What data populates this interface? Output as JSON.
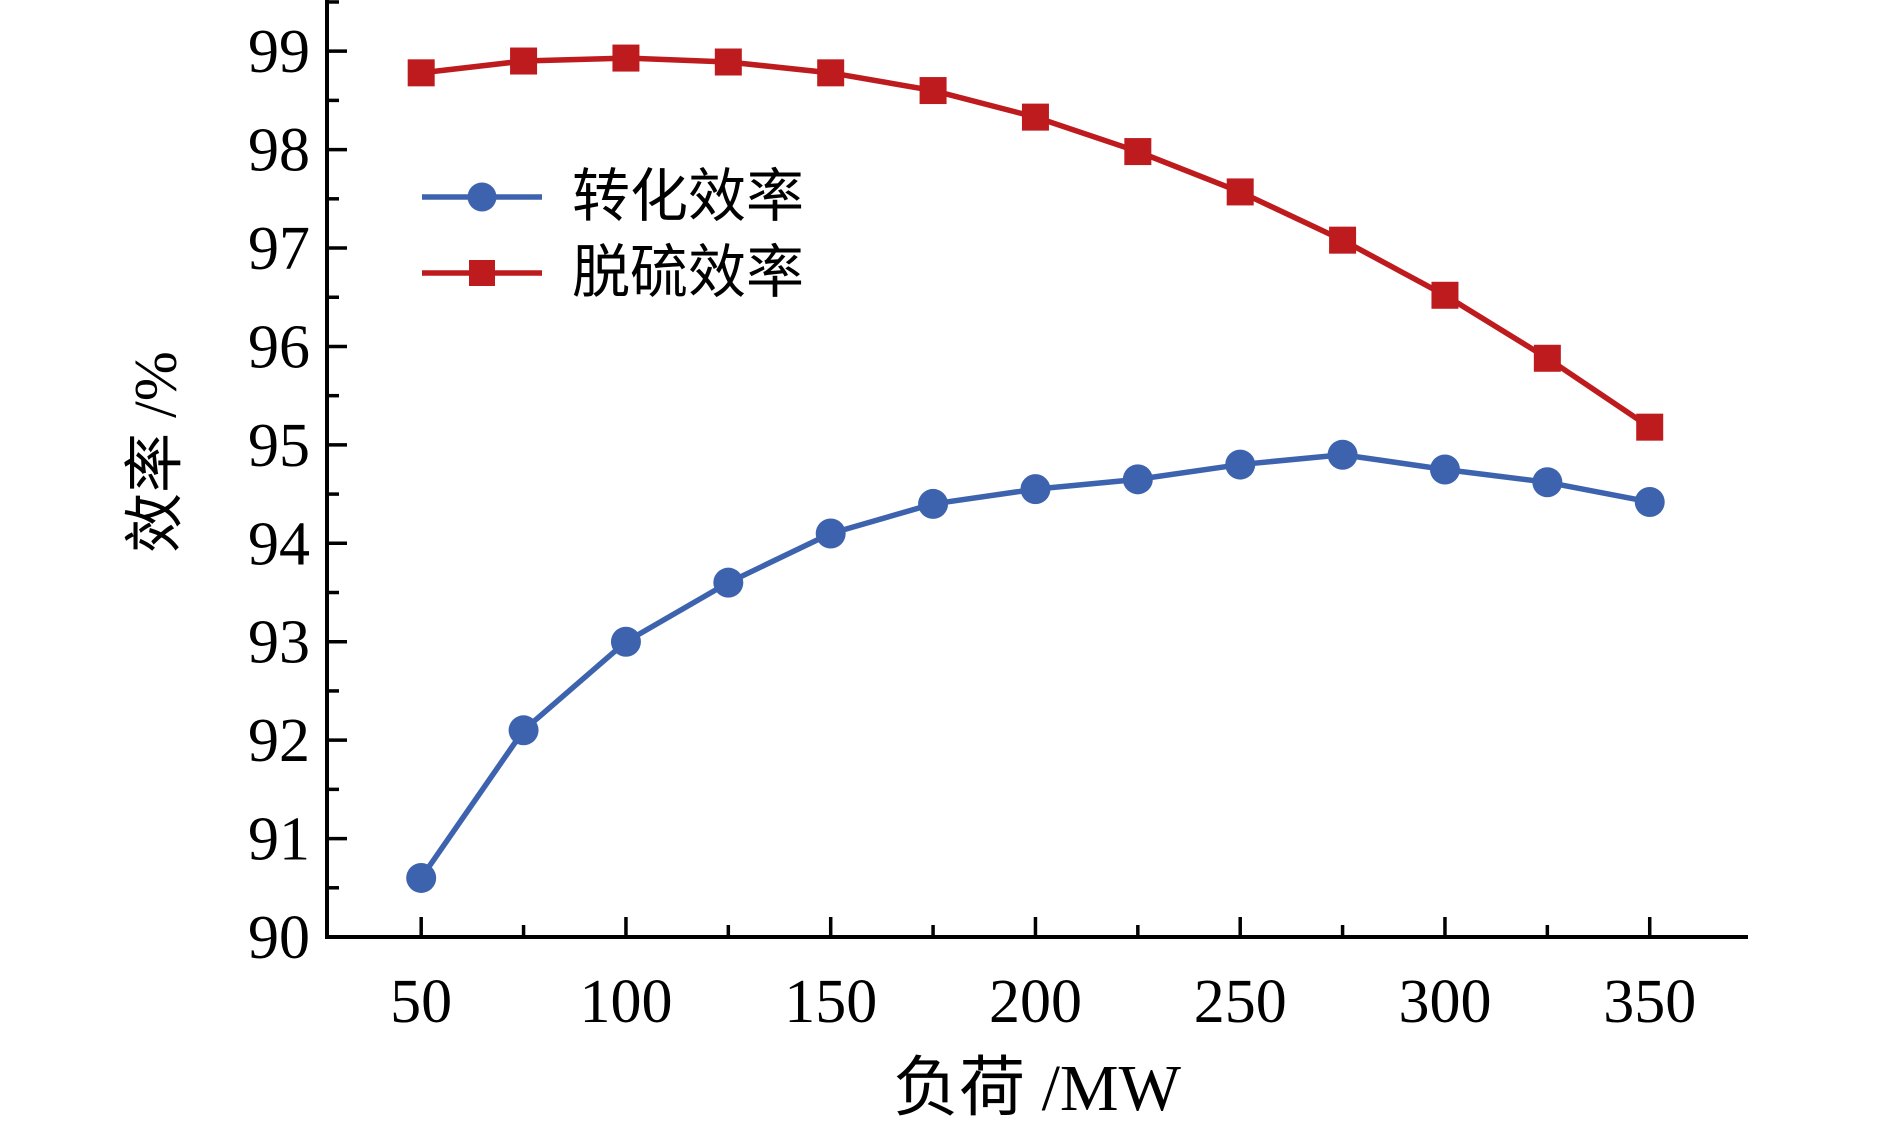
{
  "chart_data": {
    "type": "line",
    "title": "",
    "xlabel": "负荷 /MW",
    "ylabel": "效率 /%",
    "x": [
      50,
      75,
      100,
      125,
      150,
      175,
      200,
      225,
      250,
      275,
      300,
      325,
      350
    ],
    "series": [
      {
        "name": "转化效率",
        "color": "#3E63AE",
        "marker": "circle",
        "values": [
          90.6,
          92.1,
          93.0,
          93.6,
          94.1,
          94.4,
          94.55,
          94.65,
          94.8,
          94.9,
          94.75,
          94.62,
          94.42
        ]
      },
      {
        "name": "脱硫效率",
        "color": "#BE1B1E",
        "marker": "square",
        "values": [
          98.78,
          98.9,
          98.93,
          98.89,
          98.78,
          98.6,
          98.33,
          97.98,
          97.57,
          97.08,
          96.52,
          95.88,
          95.18
        ]
      }
    ],
    "xlim": [
      27,
      374
    ],
    "ylim": [
      90,
      99.52
    ],
    "x_ticks_major": [
      50,
      100,
      150,
      200,
      250,
      300,
      350
    ],
    "x_ticks_minor": [
      75,
      125,
      175,
      225,
      275,
      325
    ],
    "y_ticks_major": [
      90,
      91,
      92,
      93,
      94,
      95,
      96,
      97,
      98,
      99
    ],
    "y_ticks_minor": [
      90.5,
      91.5,
      92.5,
      93.5,
      94.5,
      95.5,
      96.5,
      97.5,
      98.5,
      99.5
    ],
    "grid": false,
    "legend_position": "upper-left-inside",
    "axis_color": "#000000",
    "text_color": "#000000",
    "background": "#ffffff"
  }
}
